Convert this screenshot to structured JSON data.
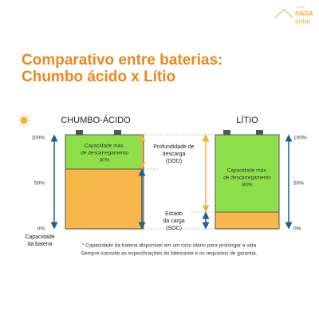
{
  "logo": {
    "small": "nossa",
    "brand": "casa",
    "sub": "solar"
  },
  "title": [
    "Comparativo entre baterias:",
    "Chumbo ácido x Lítio"
  ],
  "batteries": [
    {
      "name": "CHUMBO-ÁCIDO",
      "box_text": [
        "Capacidade máx.",
        "de descarregamento",
        "30%"
      ]
    },
    {
      "name": "LÍTIO",
      "box_text": [
        "Capacidade máx.",
        "de descarregamento",
        "80%"
      ]
    }
  ],
  "left_scale": [
    "100%",
    "50%",
    "0%"
  ],
  "right_scale": [
    "100%",
    "50%",
    "0%"
  ],
  "capacity_label": [
    "Capacidade",
    "da bateria"
  ],
  "dod_label": [
    "Profundidade de",
    "descarga",
    "(DOD)"
  ],
  "soc_label": [
    "Estado",
    "da carga",
    "(SOC)"
  ],
  "footnote": [
    "* Capacidade da bateria disponível em um ciclo diário para prolongar a vida",
    "Sempre consulte as especificações do fabricante e os requisitos de garantia."
  ]
}
